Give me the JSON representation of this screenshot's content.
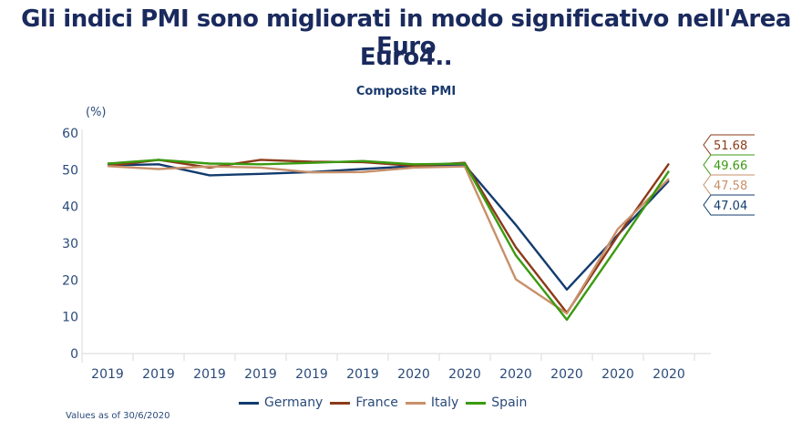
{
  "header": {
    "title_line1": "Gli indici PMI sono migliorati in modo significativo nell'Area Euro",
    "title_line2": "Euro4.."
  },
  "footnote": "Values as of 30/6/2020",
  "chart_data": {
    "type": "line",
    "title": "Composite PMI",
    "ylabel": "(%)",
    "xlabel": "",
    "ylim": [
      0,
      60
    ],
    "yticks": [
      0,
      10,
      20,
      30,
      40,
      50,
      60
    ],
    "categories": [
      "2019",
      "2019",
      "2019",
      "2019",
      "2019",
      "2019",
      "2020",
      "2020",
      "2020",
      "2020",
      "2020",
      "2020"
    ],
    "grid": false,
    "legend_position": "bottom",
    "series": [
      {
        "name": "Germany",
        "color": "#123b6e",
        "values": [
          51.2,
          51.5,
          48.5,
          48.9,
          49.4,
          50.2,
          51.0,
          51.3,
          35.0,
          17.4,
          32.3,
          47.04
        ],
        "end_label": "47.04"
      },
      {
        "name": "France",
        "color": "#8b3a1a",
        "values": [
          51.0,
          52.7,
          50.6,
          52.7,
          52.2,
          52.1,
          51.1,
          51.9,
          28.9,
          11.1,
          32.1,
          51.68
        ],
        "end_label": "51.68"
      },
      {
        "name": "Italy",
        "color": "#c8906a",
        "values": [
          51.0,
          50.2,
          50.9,
          50.6,
          49.3,
          49.4,
          50.6,
          50.9,
          20.2,
          10.9,
          33.9,
          47.58
        ],
        "end_label": "47.58"
      },
      {
        "name": "Spain",
        "color": "#3a9a10",
        "values": [
          51.7,
          52.7,
          51.7,
          51.5,
          51.9,
          52.4,
          51.5,
          51.7,
          26.7,
          9.2,
          29.2,
          49.66
        ],
        "end_label": "49.66"
      }
    ],
    "end_label_order": [
      "France",
      "Spain",
      "Italy",
      "Germany"
    ]
  }
}
